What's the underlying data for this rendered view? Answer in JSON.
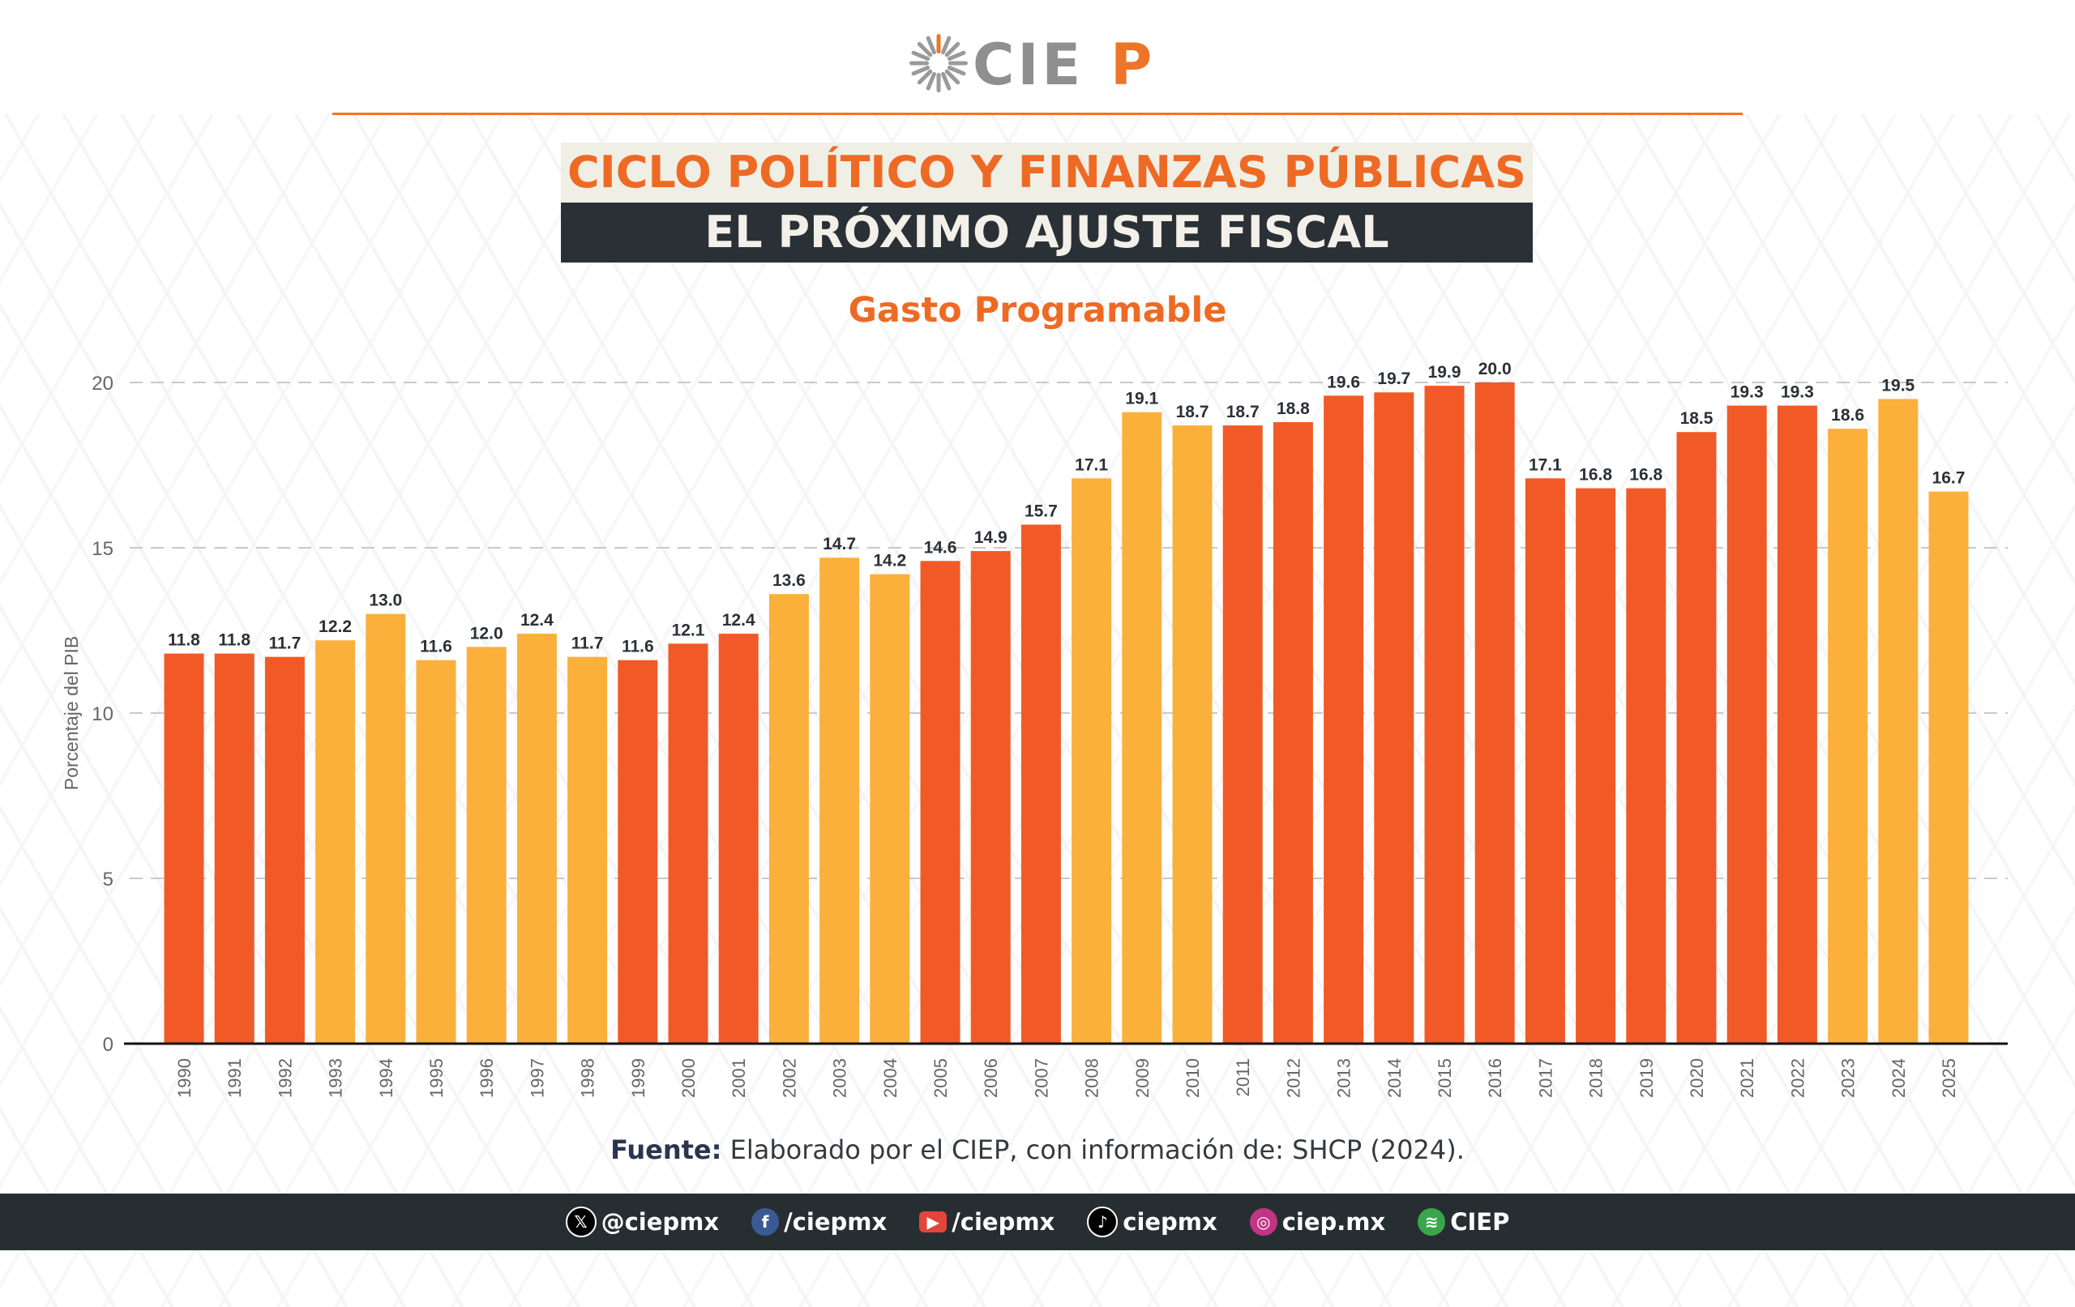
{
  "logo": {
    "text": "CIEP",
    "colors": {
      "gray": "#8f8f8f",
      "orange": "#ee7527"
    }
  },
  "header": {
    "title": "CICLO POLÍTICO Y FINANZAS PÚBLICAS",
    "subtitle": "EL PRÓXIMO AJUSTE FISCAL"
  },
  "chart_data": {
    "type": "bar",
    "title": "Gasto Programable",
    "xlabel": "",
    "ylabel": "Porcentaje del PIB",
    "ylim": [
      0,
      20
    ],
    "yticks": [
      0,
      5,
      10,
      15,
      20
    ],
    "grid": "horizontal dashed",
    "categories": [
      "1990",
      "1991",
      "1992",
      "1993",
      "1994",
      "1995",
      "1996",
      "1997",
      "1998",
      "1999",
      "2000",
      "2001",
      "2002",
      "2003",
      "2004",
      "2005",
      "2006",
      "2007",
      "2008",
      "2009",
      "2010",
      "2011",
      "2012",
      "2013",
      "2014",
      "2015",
      "2016",
      "2017",
      "2018",
      "2019",
      "2020",
      "2021",
      "2022",
      "2023",
      "2024",
      "2025"
    ],
    "values": [
      11.8,
      11.8,
      11.7,
      12.2,
      13.0,
      11.6,
      12.0,
      12.4,
      11.7,
      11.6,
      12.1,
      12.4,
      13.6,
      14.7,
      14.2,
      14.6,
      14.9,
      15.7,
      17.1,
      19.1,
      18.7,
      18.7,
      18.8,
      19.6,
      19.7,
      19.9,
      20.0,
      17.1,
      16.8,
      16.8,
      18.5,
      19.3,
      19.3,
      18.6,
      19.5,
      16.7
    ],
    "bar_colors": [
      "R",
      "R",
      "R",
      "Y",
      "Y",
      "Y",
      "Y",
      "Y",
      "Y",
      "R",
      "R",
      "R",
      "Y",
      "Y",
      "Y",
      "R",
      "R",
      "R",
      "Y",
      "Y",
      "Y",
      "R",
      "R",
      "R",
      "R",
      "R",
      "R",
      "R",
      "R",
      "R",
      "R",
      "R",
      "R",
      "Y",
      "Y",
      "Y"
    ],
    "colors": {
      "R": "#f15a27",
      "Y": "#fbb03b"
    }
  },
  "source": {
    "label": "Fuente:",
    "text": " Elaborado por el CIEP, con información de: SHCP (2024)."
  },
  "footer": {
    "items": [
      {
        "icon": "x-icon",
        "text": "@ciepmx",
        "color": "#000000"
      },
      {
        "icon": "facebook-icon",
        "text": "/ciepmx",
        "color": "#3b5a95"
      },
      {
        "icon": "youtube-icon",
        "text": "/ciepmx",
        "color": "#e2453c"
      },
      {
        "icon": "tiktok-icon",
        "text": "ciepmx",
        "color": "#000000"
      },
      {
        "icon": "instagram-icon",
        "text": "ciep.mx",
        "color": "#c13584"
      },
      {
        "icon": "spotify-icon",
        "text": "CIEP",
        "color": "#3aa64a"
      }
    ]
  }
}
